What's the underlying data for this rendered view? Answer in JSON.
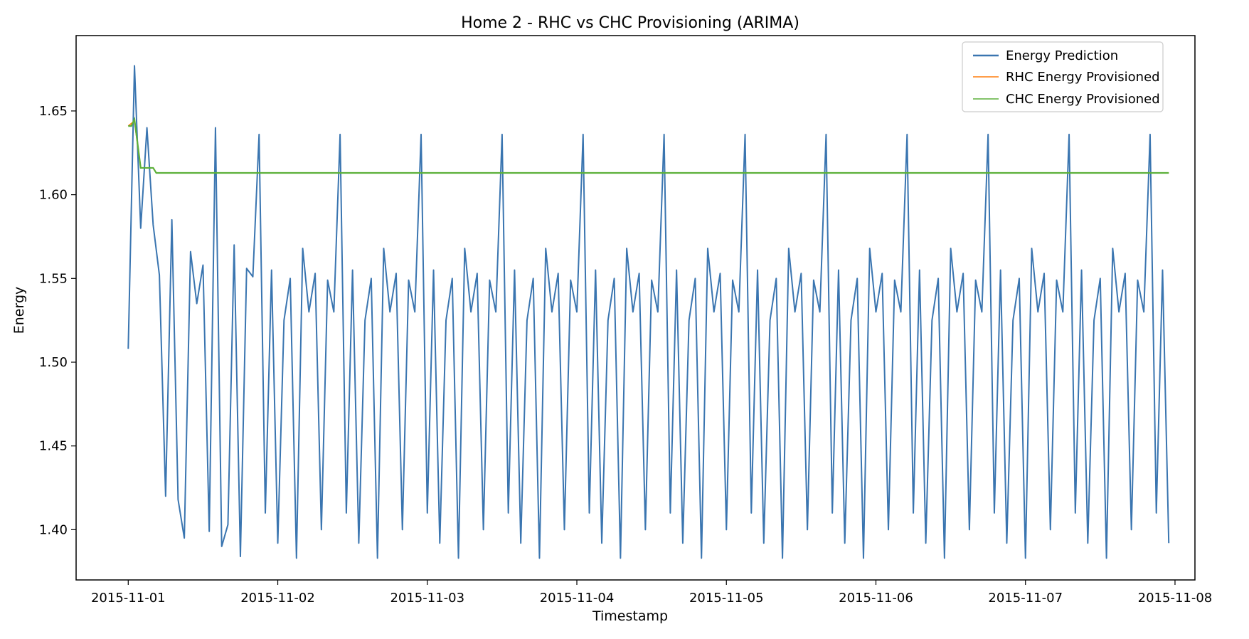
{
  "chart_data": {
    "type": "line",
    "title": "Home 2 - RHC vs CHC Provisioning (ARIMA)",
    "xlabel": "Timestamp",
    "ylabel": "Energy",
    "x_ticks": [
      "2015-11-01",
      "2015-11-02",
      "2015-11-03",
      "2015-11-04",
      "2015-11-05",
      "2015-11-06",
      "2015-11-07",
      "2015-11-08"
    ],
    "y_ticks": [
      "1.40",
      "1.45",
      "1.50",
      "1.55",
      "1.60",
      "1.65"
    ],
    "xlim": [
      "2015-10-31T15:38",
      "2015-11-08T03:12"
    ],
    "ylim": [
      1.37,
      1.695
    ],
    "grid": false,
    "legend_position": "top-right",
    "series": [
      {
        "name": "Energy Prediction",
        "color": "#3a75b0",
        "style": "solid",
        "start_values": [
          1.508,
          1.677,
          1.58,
          1.64,
          1.582,
          1.552,
          1.42,
          1.585,
          1.418,
          1.395,
          1.566,
          1.535,
          1.558,
          1.399,
          1.64,
          1.39,
          1.403,
          1.57,
          1.384,
          1.556,
          1.551
        ],
        "period_values": [
          1.636,
          1.41,
          1.555,
          1.392,
          1.525,
          1.55,
          1.383,
          1.568,
          1.53,
          1.553,
          1.4,
          1.549,
          1.53
        ],
        "period_hours": 4,
        "start": "2015-11-01T00:00",
        "end": "2015-11-07T23:00",
        "step_hours": 1
      },
      {
        "name": "RHC Energy Provisioned",
        "color": "#ff7f0e",
        "style": "solid",
        "points": [
          [
            "2015-11-01T00:00",
            1.641
          ],
          [
            "2015-11-01T01:00",
            1.644
          ],
          [
            "2015-11-01T02:00",
            1.616
          ],
          [
            "2015-11-01T04:00",
            1.616
          ],
          [
            "2015-11-01T04:30",
            1.613
          ],
          [
            "2015-11-07T23:00",
            1.613
          ]
        ]
      },
      {
        "name": "CHC Energy Provisioned",
        "color": "#5cb03a",
        "style": "solid",
        "points": [
          [
            "2015-11-01T00:00",
            1.641
          ],
          [
            "2015-11-01T00:30",
            1.641
          ],
          [
            "2015-11-01T01:00",
            1.645
          ],
          [
            "2015-11-01T02:00",
            1.616
          ],
          [
            "2015-11-01T04:00",
            1.616
          ],
          [
            "2015-11-01T04:30",
            1.613
          ],
          [
            "2015-11-07T23:00",
            1.613
          ]
        ]
      }
    ]
  }
}
